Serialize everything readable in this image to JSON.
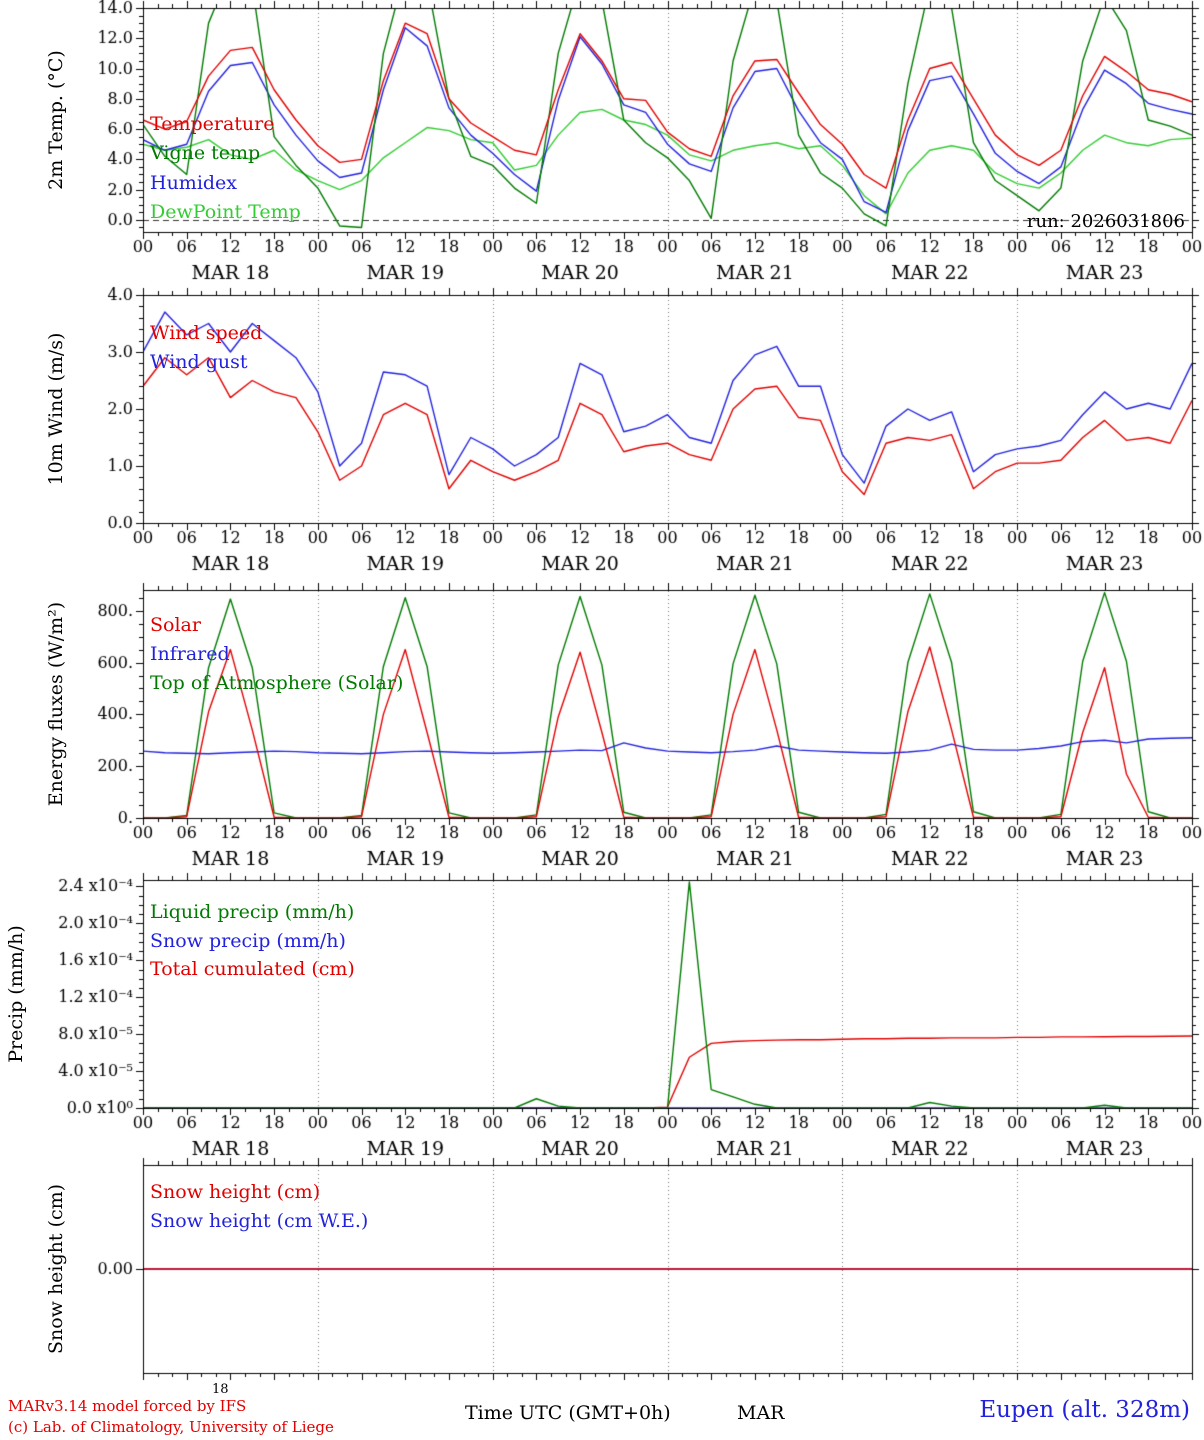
{
  "header": {
    "run_label": "run: 2026031806"
  },
  "footer": {
    "model_credit_line1": "MARv3.14 model forced by IFS",
    "model_credit_line2": "(c) Lab. of Climatology, University of Liege",
    "axis_caption": "Time UTC (GMT+0h)",
    "month_caption": "MAR",
    "station_caption": "Eupen (alt. 328m)",
    "stray_tick_label": "18"
  },
  "colors": {
    "red": "#e00000",
    "blue": "#2222dd",
    "dark_green": "#007a00",
    "light_green": "#33cc33",
    "black": "#000000"
  },
  "time_axis": {
    "hours_end": 144,
    "major_tick_hours": 6,
    "minor_tick_hours": 2,
    "day_boundary_hours": 24,
    "tick_labels": [
      "00",
      "06",
      "12",
      "18"
    ],
    "day_labels": [
      "MAR 18",
      "MAR 19",
      "MAR 20",
      "MAR 21",
      "MAR 22",
      "MAR 23"
    ]
  },
  "chart_data": [
    {
      "id": "temperature-panel",
      "type": "line",
      "ylabel": "2m Temp. (°C)",
      "ylim": [
        -0.8,
        14.0
      ],
      "ytick_minor_step": 0.5,
      "zero_line_dashed": true,
      "yticks": [
        {
          "v": 0,
          "label": "0.0"
        },
        {
          "v": 2,
          "label": "2.0"
        },
        {
          "v": 4,
          "label": "4.0"
        },
        {
          "v": 6,
          "label": "6.0"
        },
        {
          "v": 8,
          "label": "8.0"
        },
        {
          "v": 10,
          "label": "10.0"
        },
        {
          "v": 12,
          "label": "12.0"
        },
        {
          "v": 14,
          "label": "14.0"
        }
      ],
      "x_start": 0,
      "x_step": 3,
      "series": [
        {
          "name": "Temperature",
          "color": "#e00000",
          "y": [
            6.6,
            6.0,
            6.5,
            9.5,
            11.2,
            11.4,
            8.6,
            6.6,
            4.9,
            3.8,
            4.0,
            9.2,
            13.0,
            12.3,
            8.0,
            6.4,
            5.5,
            4.6,
            4.3,
            8.6,
            12.3,
            10.5,
            8.0,
            7.9,
            5.8,
            4.7,
            4.2,
            8.2,
            10.5,
            10.6,
            8.4,
            6.3,
            5.0,
            3.0,
            2.1,
            6.6,
            10.0,
            10.4,
            8.0,
            5.6,
            4.3,
            3.6,
            4.6,
            8.2,
            10.8,
            9.8,
            8.6,
            8.3,
            7.8
          ]
        },
        {
          "name": "Vigne temp",
          "color": "#007a00",
          "y": [
            6.3,
            4.2,
            3.0,
            13.0,
            16.5,
            15.5,
            5.5,
            3.6,
            2.1,
            -0.4,
            -0.5,
            11.0,
            16.5,
            15.8,
            8.0,
            4.2,
            3.6,
            2.1,
            1.1,
            11.0,
            16.0,
            14.5,
            6.6,
            5.1,
            4.1,
            2.6,
            0.1,
            10.5,
            15.5,
            14.5,
            5.6,
            3.1,
            2.1,
            0.4,
            -0.4,
            9.0,
            15.5,
            14.0,
            5.1,
            2.6,
            1.6,
            0.6,
            2.1,
            10.5,
            14.8,
            12.5,
            6.6,
            6.2,
            5.6
          ]
        },
        {
          "name": "Humidex",
          "color": "#2222dd",
          "y": [
            5.3,
            4.6,
            5.0,
            8.5,
            10.2,
            10.4,
            7.6,
            5.6,
            3.9,
            2.8,
            3.1,
            8.6,
            12.7,
            11.5,
            7.4,
            5.6,
            4.4,
            3.0,
            1.9,
            7.9,
            12.1,
            10.3,
            7.6,
            7.1,
            5.0,
            3.7,
            3.2,
            7.4,
            9.8,
            10.0,
            7.2,
            5.1,
            4.0,
            1.2,
            0.5,
            5.9,
            9.2,
            9.5,
            7.0,
            4.4,
            3.2,
            2.4,
            3.5,
            7.3,
            9.9,
            9.0,
            7.7,
            7.3,
            7.0
          ]
        },
        {
          "name": "DewPoint Temp",
          "color": "#33cc33",
          "y": [
            5.0,
            4.6,
            4.8,
            5.3,
            4.3,
            4.0,
            4.6,
            3.3,
            2.6,
            2.0,
            2.6,
            4.1,
            5.1,
            6.1,
            5.9,
            5.3,
            5.1,
            3.3,
            3.6,
            5.6,
            7.1,
            7.3,
            6.6,
            6.3,
            5.6,
            4.3,
            3.9,
            4.6,
            4.9,
            5.1,
            4.7,
            4.9,
            3.6,
            1.6,
            0.4,
            3.1,
            4.6,
            4.9,
            4.6,
            3.1,
            2.4,
            2.1,
            3.1,
            4.6,
            5.6,
            5.1,
            4.9,
            5.3,
            5.4
          ]
        }
      ]
    },
    {
      "id": "wind-panel",
      "type": "line",
      "ylabel": "10m Wind (m/s)",
      "ylim": [
        0.0,
        4.0
      ],
      "ytick_minor_step": 0.2,
      "zero_line_dashed": false,
      "yticks": [
        {
          "v": 0,
          "label": "0.0"
        },
        {
          "v": 1,
          "label": "1.0"
        },
        {
          "v": 2,
          "label": "2.0"
        },
        {
          "v": 3,
          "label": "3.0"
        },
        {
          "v": 4,
          "label": "4.0"
        }
      ],
      "x_start": 0,
      "x_step": 3,
      "series": [
        {
          "name": "Wind speed",
          "color": "#e00000",
          "y": [
            2.4,
            2.9,
            2.6,
            2.9,
            2.2,
            2.5,
            2.3,
            2.2,
            1.6,
            0.75,
            1.0,
            1.9,
            2.1,
            1.9,
            0.6,
            1.1,
            0.9,
            0.75,
            0.9,
            1.1,
            2.1,
            1.9,
            1.25,
            1.35,
            1.4,
            1.2,
            1.1,
            2.0,
            2.35,
            2.4,
            1.85,
            1.8,
            0.9,
            0.5,
            1.4,
            1.5,
            1.45,
            1.55,
            0.6,
            0.9,
            1.05,
            1.05,
            1.1,
            1.5,
            1.8,
            1.45,
            1.5,
            1.4,
            2.15
          ]
        },
        {
          "name": "Wind gust",
          "color": "#2222dd",
          "y": [
            3.0,
            3.7,
            3.3,
            3.5,
            3.0,
            3.5,
            3.2,
            2.9,
            2.3,
            1.0,
            1.4,
            2.65,
            2.6,
            2.4,
            0.85,
            1.5,
            1.3,
            1.0,
            1.2,
            1.5,
            2.8,
            2.6,
            1.6,
            1.7,
            1.9,
            1.5,
            1.4,
            2.5,
            2.95,
            3.1,
            2.4,
            2.4,
            1.2,
            0.7,
            1.7,
            2.0,
            1.8,
            1.95,
            0.9,
            1.2,
            1.3,
            1.35,
            1.45,
            1.9,
            2.3,
            2.0,
            2.1,
            2.0,
            2.8
          ]
        }
      ]
    },
    {
      "id": "energy-panel",
      "type": "line",
      "ylabel": "Energy fluxes (W/m²)",
      "ylim": [
        0,
        880
      ],
      "ytick_minor_step": 50,
      "zero_line_dashed": false,
      "yticks": [
        {
          "v": 0,
          "label": "0."
        },
        {
          "v": 200,
          "label": "200."
        },
        {
          "v": 400,
          "label": "400."
        },
        {
          "v": 600,
          "label": "600."
        },
        {
          "v": 800,
          "label": "800."
        }
      ],
      "x_start": 0,
      "x_step": 3,
      "series": [
        {
          "name": "Solar",
          "color": "#e00000",
          "y": [
            0,
            0,
            5,
            410,
            650,
            340,
            3,
            0,
            0,
            0,
            5,
            400,
            650,
            330,
            3,
            0,
            0,
            0,
            5,
            390,
            640,
            330,
            3,
            0,
            0,
            0,
            5,
            400,
            650,
            340,
            3,
            0,
            0,
            0,
            5,
            410,
            660,
            340,
            3,
            0,
            0,
            0,
            5,
            330,
            580,
            170,
            3,
            0,
            0
          ]
        },
        {
          "name": "Infrared",
          "color": "#2222dd",
          "y": [
            258,
            252,
            250,
            248,
            252,
            255,
            258,
            256,
            252,
            250,
            248,
            252,
            256,
            258,
            255,
            252,
            250,
            252,
            255,
            258,
            262,
            260,
            290,
            270,
            258,
            255,
            252,
            256,
            262,
            278,
            262,
            258,
            255,
            252,
            250,
            255,
            262,
            285,
            265,
            262,
            262,
            268,
            278,
            295,
            300,
            290,
            305,
            308,
            310
          ]
        },
        {
          "name": "Top of Atmosphere (Solar)",
          "color": "#007a00",
          "y": [
            0,
            0,
            10,
            580,
            845,
            580,
            20,
            0,
            0,
            0,
            10,
            585,
            850,
            585,
            20,
            0,
            0,
            0,
            12,
            590,
            855,
            590,
            22,
            0,
            0,
            0,
            12,
            595,
            860,
            595,
            22,
            0,
            0,
            0,
            14,
            600,
            865,
            600,
            24,
            0,
            0,
            0,
            14,
            605,
            870,
            605,
            24,
            0,
            0
          ]
        }
      ]
    },
    {
      "id": "precip-panel",
      "type": "line",
      "ylabel": "Precip (mm/h)",
      "ylim": [
        0,
        0.000247
      ],
      "ytick_minor_step": 1e-05,
      "zero_line_dashed": false,
      "yticks": [
        {
          "v": 0,
          "label": "0.0 x10⁰"
        },
        {
          "v": 4e-05,
          "label": "4.0 x10⁻⁵"
        },
        {
          "v": 8e-05,
          "label": "8.0 x10⁻⁵"
        },
        {
          "v": 0.00012,
          "label": "1.2 x10⁻⁴"
        },
        {
          "v": 0.00016,
          "label": "1.6 x10⁻⁴"
        },
        {
          "v": 0.0002,
          "label": "2.0 x10⁻⁴"
        },
        {
          "v": 0.00024,
          "label": "2.4 x10⁻⁴"
        }
      ],
      "x_start": 0,
      "x_step": 3,
      "series": [
        {
          "name": "Liquid precip (mm/h)",
          "color": "#007a00",
          "y": [
            0,
            0,
            0,
            0,
            0,
            0,
            0,
            0,
            0,
            0,
            0,
            0,
            0,
            0,
            0,
            0,
            0,
            0,
            1e-05,
            2e-06,
            0,
            0,
            0,
            0,
            0,
            0.000245,
            2e-05,
            1.2e-05,
            4e-06,
            0,
            0,
            0,
            0,
            0,
            0,
            0,
            6e-06,
            2e-06,
            0,
            0,
            0,
            0,
            0,
            0,
            3e-06,
            0,
            0,
            0,
            0
          ]
        },
        {
          "name": "Snow precip (mm/h)",
          "color": "#2222dd",
          "y": [
            0,
            0,
            0,
            0,
            0,
            0,
            0,
            0,
            0,
            0,
            0,
            0,
            0,
            0,
            0,
            0,
            0,
            0,
            0,
            0,
            0,
            0,
            0,
            0,
            0,
            0,
            0,
            0,
            0,
            0,
            0,
            0,
            0,
            0,
            0,
            0,
            0,
            0,
            0,
            0,
            0,
            0,
            0,
            0,
            0,
            0,
            0,
            0,
            0
          ]
        },
        {
          "name": "Total cumulated (cm)",
          "color": "#e00000",
          "y": [
            0,
            0,
            0,
            0,
            0,
            0,
            0,
            0,
            0,
            0,
            0,
            0,
            0,
            0,
            0,
            0,
            0,
            0,
            0,
            0,
            0,
            0,
            0,
            0,
            1e-06,
            5.5e-05,
            7e-05,
            7.2e-05,
            7.3e-05,
            7.35e-05,
            7.4e-05,
            7.4e-05,
            7.45e-05,
            7.5e-05,
            7.5e-05,
            7.55e-05,
            7.55e-05,
            7.6e-05,
            7.6e-05,
            7.6e-05,
            7.65e-05,
            7.65e-05,
            7.7e-05,
            7.7e-05,
            7.72e-05,
            7.75e-05,
            7.75e-05,
            7.78e-05,
            7.8e-05
          ]
        }
      ]
    },
    {
      "id": "snow-panel",
      "type": "line",
      "ylabel": "Snow height (cm)",
      "ylim": [
        -1,
        1
      ],
      "ytick_minor_step": null,
      "zero_line_dashed": false,
      "yticks": [
        {
          "v": 0,
          "label": "0.00"
        }
      ],
      "x_start": 0,
      "x_step": 3,
      "series": [
        {
          "name": "Snow height (cm)",
          "color": "#e00000",
          "y": [
            0,
            0,
            0,
            0,
            0,
            0,
            0,
            0,
            0,
            0,
            0,
            0,
            0,
            0,
            0,
            0,
            0,
            0,
            0,
            0,
            0,
            0,
            0,
            0,
            0,
            0,
            0,
            0,
            0,
            0,
            0,
            0,
            0,
            0,
            0,
            0,
            0,
            0,
            0,
            0,
            0,
            0,
            0,
            0,
            0,
            0,
            0,
            0,
            0
          ]
        },
        {
          "name": "Snow height (cm W.E.)",
          "color": "#2222dd",
          "y": [
            0,
            0,
            0,
            0,
            0,
            0,
            0,
            0,
            0,
            0,
            0,
            0,
            0,
            0,
            0,
            0,
            0,
            0,
            0,
            0,
            0,
            0,
            0,
            0,
            0,
            0,
            0,
            0,
            0,
            0,
            0,
            0,
            0,
            0,
            0,
            0,
            0,
            0,
            0,
            0,
            0,
            0,
            0,
            0,
            0,
            0,
            0,
            0,
            0
          ]
        }
      ]
    }
  ]
}
